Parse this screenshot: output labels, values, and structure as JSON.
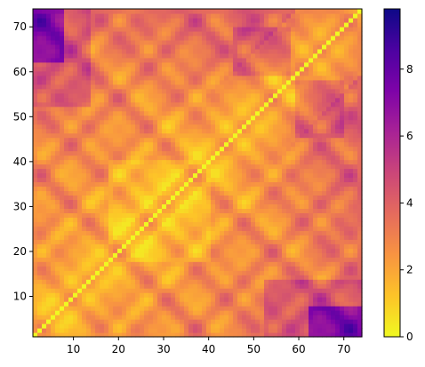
{
  "chart_data": {
    "type": "heatmap",
    "title": "",
    "xlabel": "",
    "ylabel": "",
    "n_residues": 74,
    "xlim": [
      1,
      74
    ],
    "ylim": [
      1,
      74
    ],
    "x_ticks": [
      "10",
      "20",
      "30",
      "40",
      "50",
      "60",
      "70"
    ],
    "y_ticks": [
      "10",
      "20",
      "30",
      "40",
      "50",
      "60",
      "70"
    ],
    "colormap": "plasma_r",
    "colorbar": {
      "range": [
        0,
        9.8
      ],
      "ticks": [
        "0",
        "2",
        "4",
        "6",
        "8"
      ]
    },
    "colors": {
      "stops": [
        "#f0f921",
        "#fdc328",
        "#f89441",
        "#e56b5d",
        "#cb4679",
        "#a82296",
        "#7e03a8",
        "#4c02a1",
        "#0d0887"
      ]
    },
    "grid": false
  }
}
